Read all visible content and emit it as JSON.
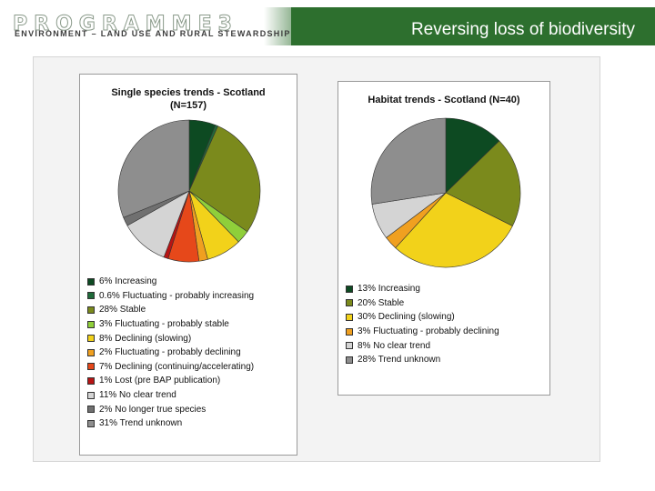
{
  "header": {
    "logo": "PROGRAMME3",
    "subtitle": "ENVIRONMENT – LAND USE AND RURAL STEWARDSHIP",
    "title": "Reversing loss of biodiversity"
  },
  "chart_data": [
    {
      "type": "pie",
      "title": "Single species trends - Scotland",
      "subtitle": "(N=157)",
      "slices": [
        {
          "value": 6,
          "label": "6% Increasing",
          "color": "#0d4a22"
        },
        {
          "value": 0.6,
          "label": "0.6% Fluctuating - probably increasing",
          "color": "#1f6b3a"
        },
        {
          "value": 28,
          "label": "28% Stable",
          "color": "#7b8a1c"
        },
        {
          "value": 3,
          "label": "3% Fluctuating - probably stable",
          "color": "#8fcf3a"
        },
        {
          "value": 8,
          "label": "8% Declining (slowing)",
          "color": "#f2d21a"
        },
        {
          "value": 2,
          "label": "2% Fluctuating - probably declining",
          "color": "#f0a020"
        },
        {
          "value": 7,
          "label": "7% Declining (continuing/accelerating)",
          "color": "#e6481a"
        },
        {
          "value": 1,
          "label": "1% Lost (pre BAP publication)",
          "color": "#b81414"
        },
        {
          "value": 11,
          "label": "11% No clear trend",
          "color": "#d4d4d4"
        },
        {
          "value": 2,
          "label": "2% No longer true species",
          "color": "#707070"
        },
        {
          "value": 31,
          "label": "31% Trend unknown",
          "color": "#8e8e8e"
        }
      ]
    },
    {
      "type": "pie",
      "title": "Habitat trends - Scotland (N=40)",
      "slices": [
        {
          "value": 13,
          "label": "13% Increasing",
          "color": "#0d4a22"
        },
        {
          "value": 20,
          "label": "20% Stable",
          "color": "#7b8a1c"
        },
        {
          "value": 30,
          "label": "30% Declining (slowing)",
          "color": "#f2d21a"
        },
        {
          "value": 3,
          "label": "3% Fluctuating - probably declining",
          "color": "#f0a020"
        },
        {
          "value": 8,
          "label": "8% No clear trend",
          "color": "#d4d4d4"
        },
        {
          "value": 28,
          "label": "28% Trend unknown",
          "color": "#8e8e8e"
        }
      ]
    }
  ]
}
